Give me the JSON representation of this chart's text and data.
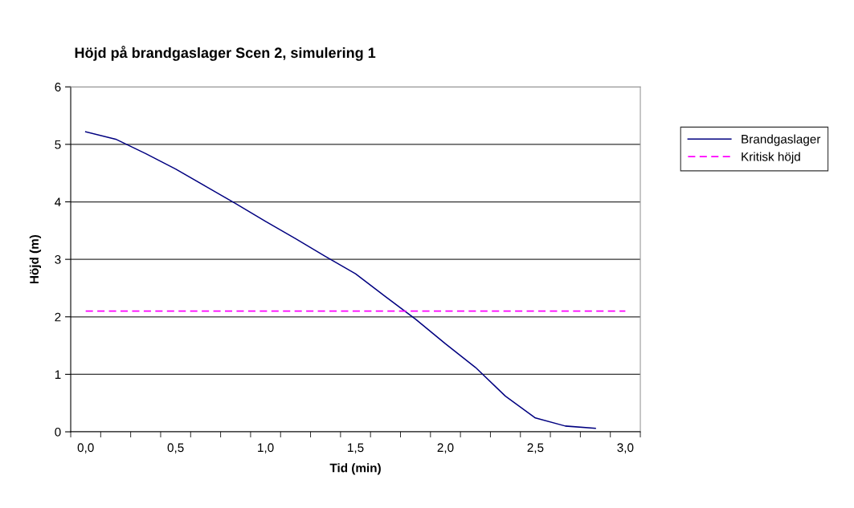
{
  "chart_data": {
    "type": "line",
    "title": "Höjd på brandgaslager Scen 2, simulering 1",
    "xlabel": "Tid (min)",
    "ylabel": "Höjd (m)",
    "categories": [
      "0,0",
      null,
      null,
      "0,5",
      null,
      null,
      "1,0",
      null,
      null,
      "1,5",
      null,
      null,
      "2,0",
      null,
      null,
      "2,5",
      null,
      null,
      "3,0"
    ],
    "series": [
      {
        "name": "Brandgaslager",
        "color": "#000080",
        "line_style": "solid",
        "values": [
          5.22,
          5.09,
          4.84,
          4.57,
          4.27,
          3.97,
          3.66,
          3.36,
          3.05,
          2.75,
          2.35,
          1.96,
          1.53,
          1.12,
          0.62,
          0.24,
          0.1,
          0.06,
          null
        ]
      },
      {
        "name": "Kritisk höjd",
        "color": "#ff00ff",
        "line_style": "dashed",
        "values": [
          2.1,
          2.1,
          2.1,
          2.1,
          2.1,
          2.1,
          2.1,
          2.1,
          2.1,
          2.1,
          2.1,
          2.1,
          2.1,
          2.1,
          2.1,
          2.1,
          2.1,
          2.1,
          2.1
        ]
      }
    ],
    "ylim": [
      0,
      6
    ],
    "yticks": [
      0,
      1,
      2,
      3,
      4,
      5,
      6
    ],
    "grid": "y",
    "legend": "right",
    "marker": "none"
  }
}
